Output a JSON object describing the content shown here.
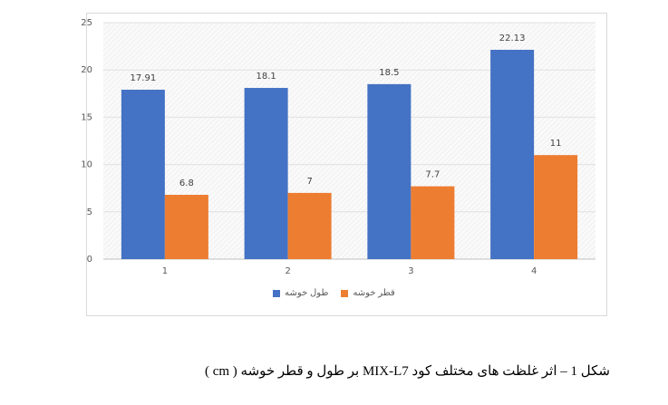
{
  "chart_data": {
    "type": "bar",
    "categories": [
      "1",
      "2",
      "3",
      "4"
    ],
    "series": [
      {
        "name": "طول خوشه",
        "color": "#4472C4",
        "values": [
          17.91,
          18.1,
          18.5,
          22.13
        ],
        "labels": [
          "17.91",
          "18.1",
          "18.5",
          "22.13"
        ]
      },
      {
        "name": "قطر خوشه",
        "color": "#ED7D31",
        "values": [
          6.8,
          7,
          7.7,
          11
        ],
        "labels": [
          "6.8",
          "7",
          "7.7",
          "11"
        ]
      }
    ],
    "ylim": [
      0,
      25
    ],
    "yticks": [
      "0",
      "5",
      "10",
      "15",
      "20",
      "25"
    ],
    "legend": "bottom",
    "grid": true
  },
  "caption": "شکل 1 – اثر غلظت های مختلف کود MIX-L7 بر طول و قطر خوشه ( cm )"
}
